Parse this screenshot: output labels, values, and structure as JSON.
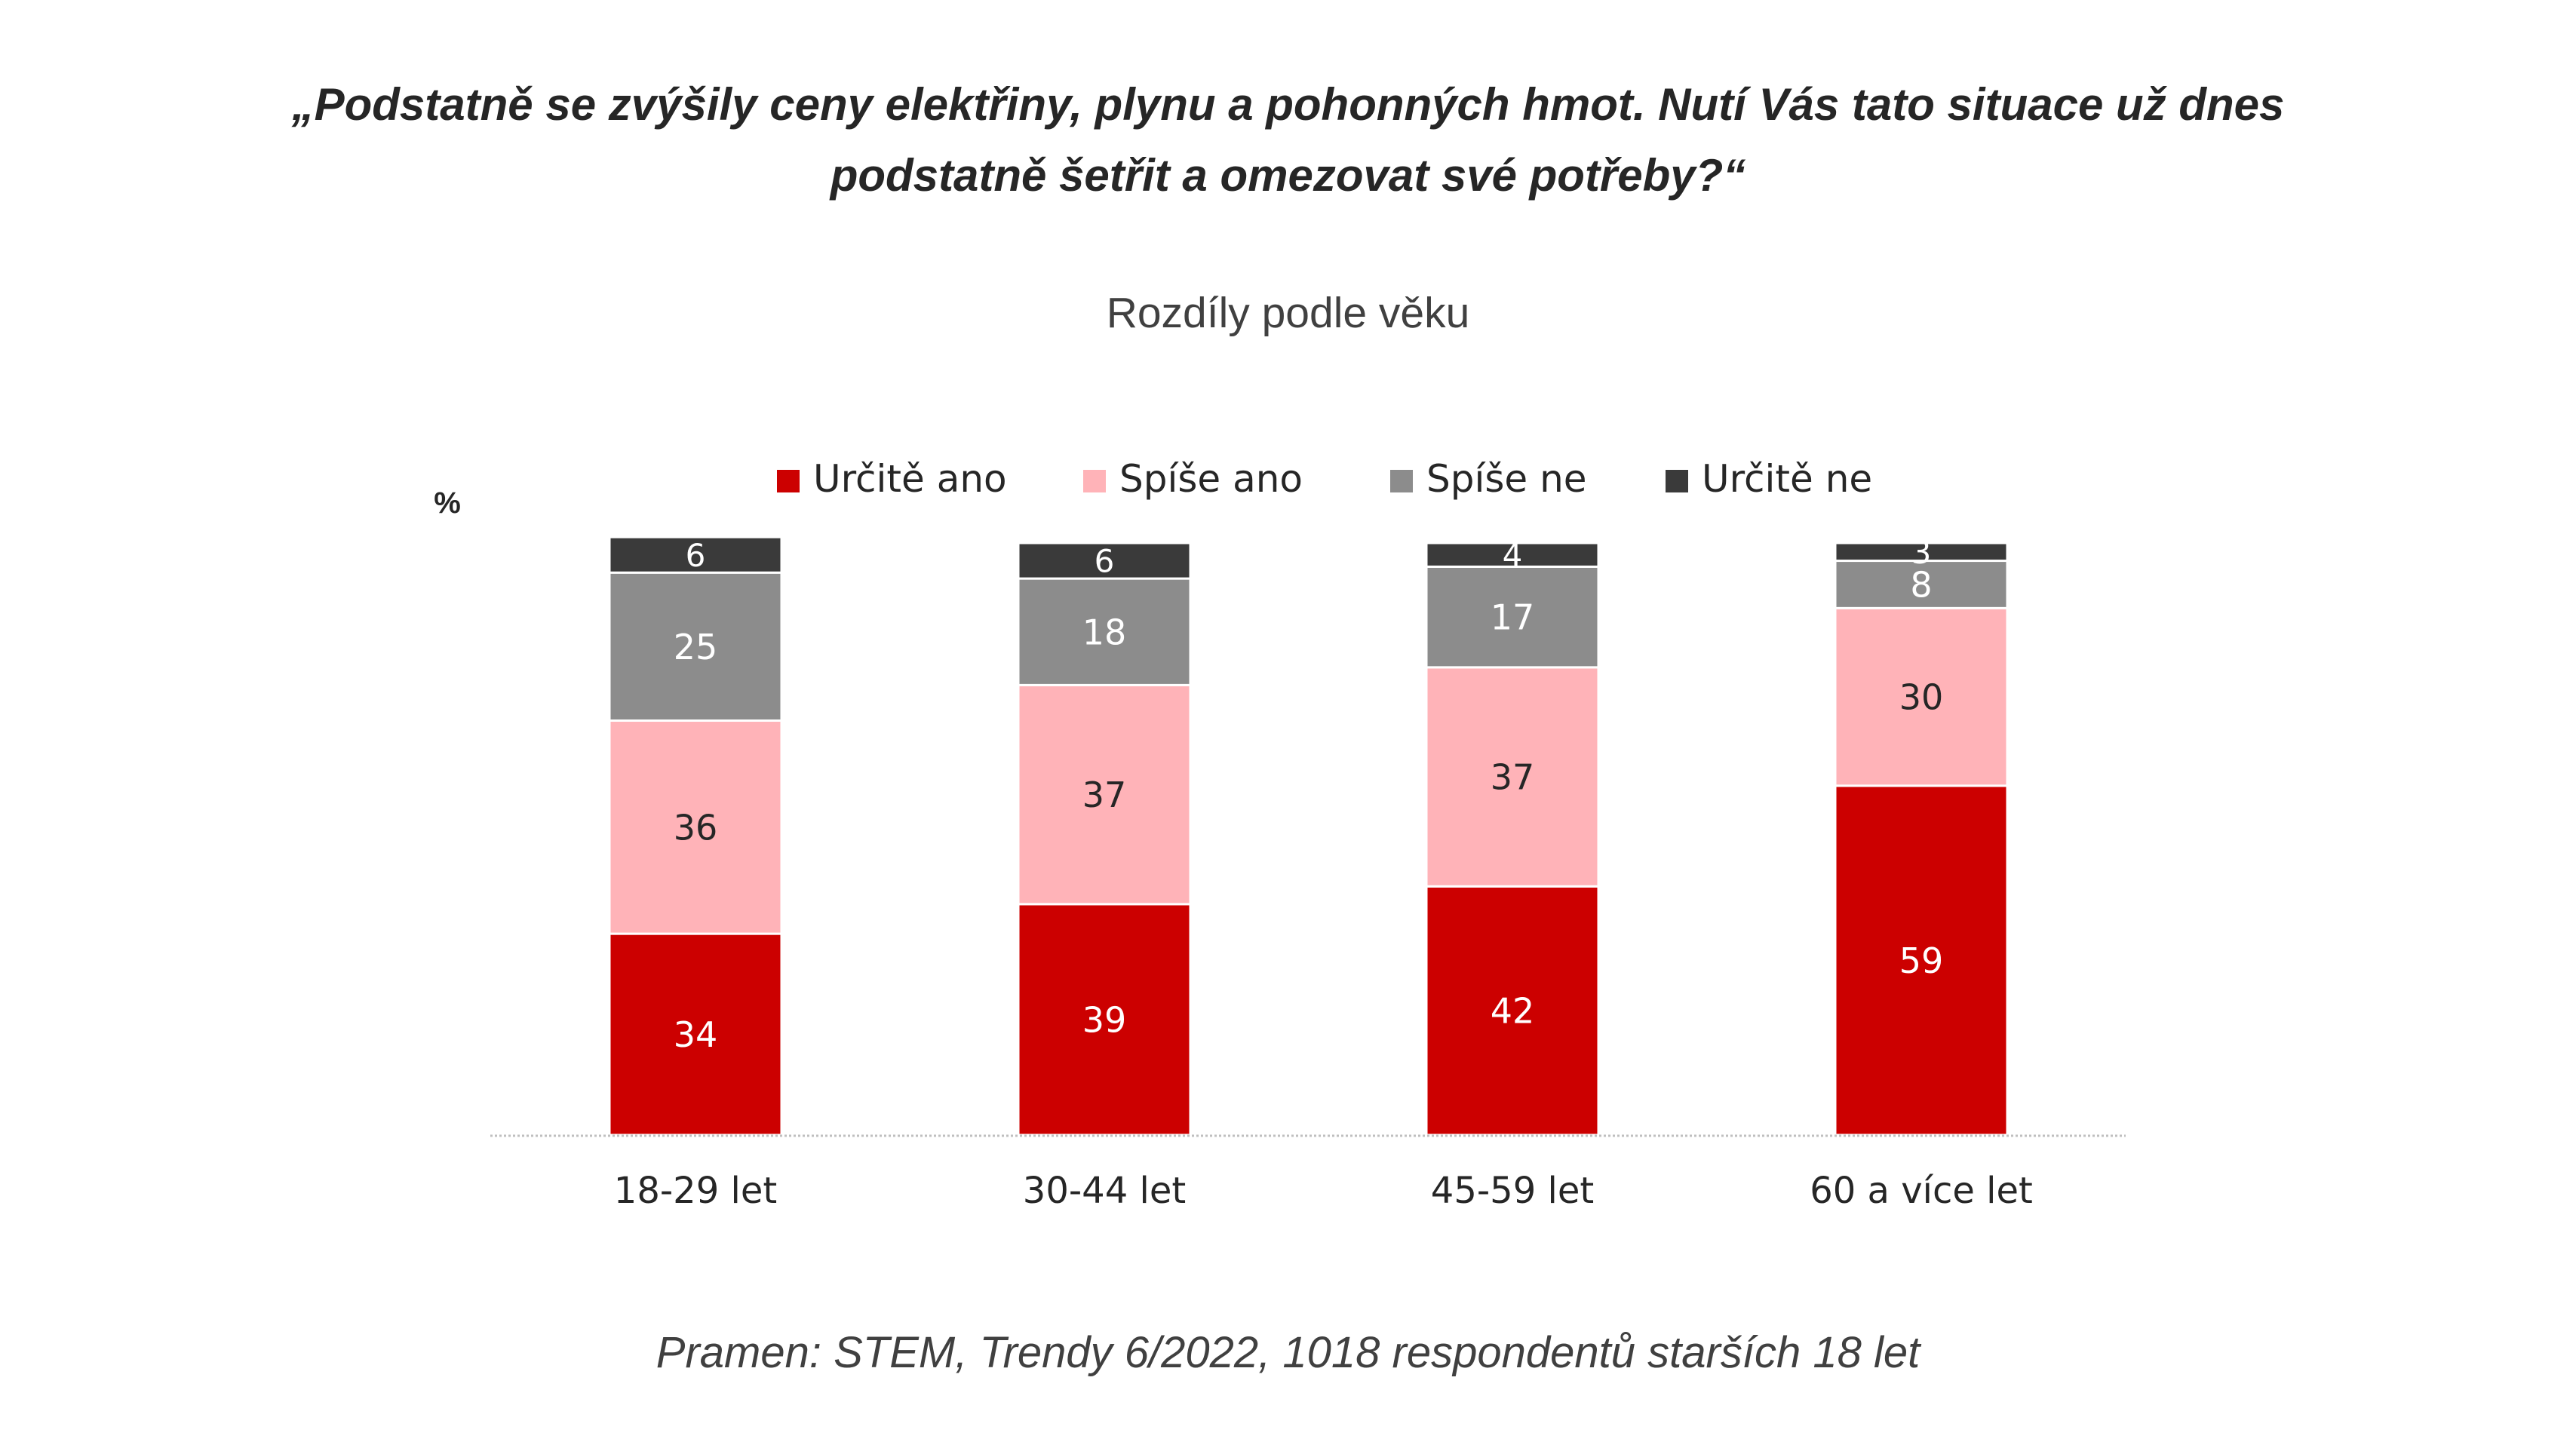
{
  "header": {
    "question_line1": "„Podstatně se zvýšily ceny elektřiny, plynu a pohonných hmot. Nutí Vás tato situace už dnes",
    "question_line2": "podstatně šetřit a omezovat své potřeby?“",
    "subtitle": "Rozdíly podle věku"
  },
  "footer": {
    "source": "Pramen: STEM, Trendy 6/2022, 1018 respondentů starších 18 let"
  },
  "chart_data": {
    "type": "bar",
    "stacked": true,
    "unit_label": "%",
    "categories": [
      "18-29 let",
      "30-44 let",
      "45-59 let",
      "60 a více let"
    ],
    "series": [
      {
        "name": "Určitě ano",
        "color": "#cc0000",
        "label_color": "#ffffff",
        "values": [
          34,
          39,
          42,
          59
        ]
      },
      {
        "name": "Spíše ano",
        "color": "#ffb3b8",
        "label_color": "#262626",
        "values": [
          36,
          37,
          37,
          30
        ]
      },
      {
        "name": "Spíše ne",
        "color": "#8c8c8c",
        "label_color": "#ffffff",
        "values": [
          25,
          18,
          17,
          8
        ]
      },
      {
        "name": "Určitě ne",
        "color": "#3a3a3a",
        "label_color": "#ffffff",
        "values": [
          6,
          6,
          4,
          3
        ]
      }
    ],
    "ylim": [
      0,
      100
    ],
    "legend_position": "top",
    "grid": false
  }
}
